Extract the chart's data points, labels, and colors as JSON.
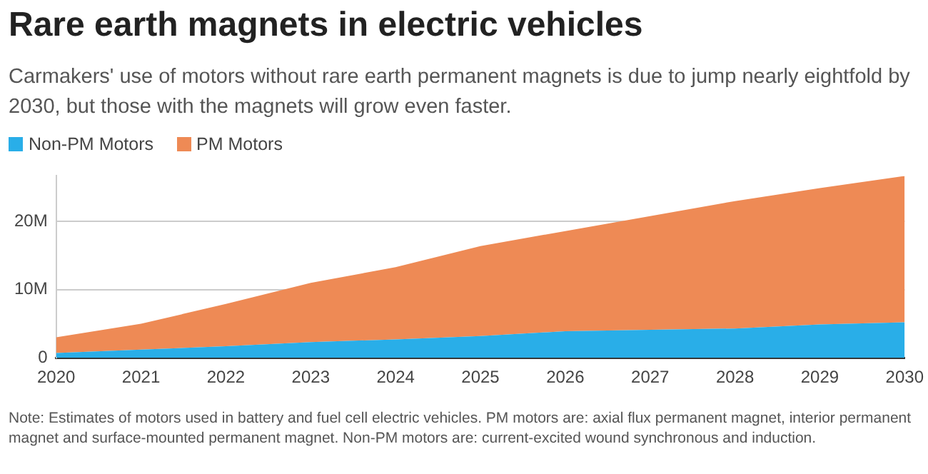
{
  "chart_data": {
    "type": "area",
    "title": "Rare earth magnets in electric vehicles",
    "subtitle": "Carmakers' use of motors without rare earth permanent magnets is due to jump nearly eightfold by 2030, but those with the magnets will grow even faster.",
    "categories": [
      "2020",
      "2021",
      "2022",
      "2023",
      "2024",
      "2025",
      "2026",
      "2027",
      "2028",
      "2029",
      "2030"
    ],
    "series": [
      {
        "name": "Non-PM Motors",
        "color": "#29aee8",
        "values": [
          0.7,
          1.2,
          1.7,
          2.3,
          2.7,
          3.2,
          3.9,
          4.1,
          4.3,
          4.9,
          5.2
        ]
      },
      {
        "name": "PM Motors",
        "color": "#ee8a55",
        "values": [
          2.3,
          3.8,
          6.2,
          8.7,
          10.6,
          13.2,
          14.7,
          16.7,
          18.7,
          20.0,
          21.5
        ]
      }
    ],
    "stacked": true,
    "ylim": [
      0,
      26.7
    ],
    "yticks": [
      {
        "value": 0,
        "label": "0"
      },
      {
        "value": 10,
        "label": "10M"
      },
      {
        "value": 20,
        "label": "20M"
      }
    ],
    "grid": "y",
    "legend": "top left",
    "annotations": [
      "Note: Estimates of motors used in battery and fuel cell electric vehicles. PM motors are: axial flux permanent magnet, interior permanent magnet and surface-mounted permanent magnet. Non-PM motors are: current-excited wound synchronous and induction."
    ]
  }
}
